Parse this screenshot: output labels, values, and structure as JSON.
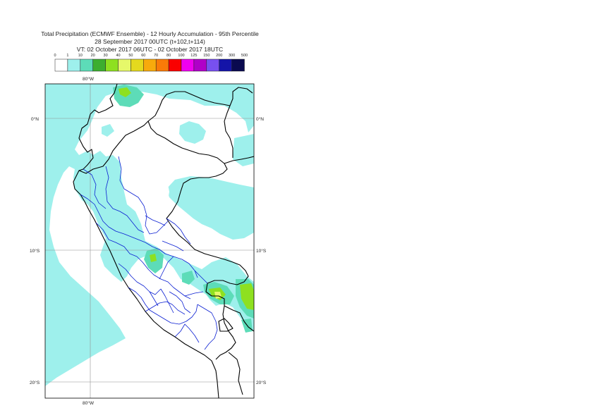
{
  "title": {
    "line1": "Total Precipitation (ECMWF Ensemble) - 12 Hourly Accumulation - 95th Percentile",
    "line2": "28 September 2017 00UTC (t+102,t+114)",
    "line3": "VT: 02 October 2017 06UTC - 02 October 2017 18UTC"
  },
  "legend": {
    "thresholds": [
      "0",
      "1",
      "10",
      "20",
      "30",
      "40",
      "50",
      "60",
      "70",
      "80",
      "100",
      "125",
      "150",
      "200",
      "300",
      "500"
    ],
    "colors": [
      "#ffffff",
      "#9ef0ec",
      "#5ddcb8",
      "#3cae2f",
      "#8ee020",
      "#e6f86a",
      "#e4d91e",
      "#f8aa0c",
      "#fa7a08",
      "#fa0000",
      "#f000f0",
      "#b000c8",
      "#7850f0",
      "#1414a8",
      "#0a0a50"
    ]
  },
  "map": {
    "lon_labels": [
      "80°W",
      "80°W"
    ],
    "lat_labels": [
      "0°N",
      "10°S",
      "20°S"
    ],
    "colors": {
      "rain_light": "#9ef0ec",
      "rain_moderate": "#5ddcb8",
      "rain_heavy": "#8ee020",
      "border": "#000000",
      "regions": "#0a1ed2",
      "gridline": "#909090"
    }
  }
}
